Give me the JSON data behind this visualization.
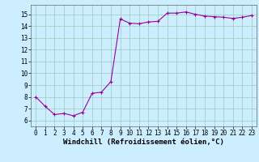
{
  "x": [
    0,
    1,
    2,
    3,
    4,
    5,
    6,
    7,
    8,
    9,
    10,
    11,
    12,
    13,
    14,
    15,
    16,
    17,
    18,
    19,
    20,
    21,
    22,
    23
  ],
  "y": [
    8.0,
    7.2,
    6.5,
    6.6,
    6.4,
    6.7,
    8.3,
    8.4,
    9.3,
    14.6,
    14.25,
    14.2,
    14.35,
    14.4,
    15.1,
    15.1,
    15.2,
    15.0,
    14.85,
    14.8,
    14.75,
    14.65,
    14.75,
    14.9
  ],
  "line_color": "#990099",
  "marker": "+",
  "markersize": 3,
  "linewidth": 0.8,
  "bg_color": "#cceeff",
  "grid_color": "#99ccbb",
  "xlabel": "Windchill (Refroidissement éolien,°C)",
  "xlabel_fontsize": 6.5,
  "tick_fontsize": 5.5,
  "xlim": [
    -0.5,
    23.5
  ],
  "ylim": [
    5.5,
    15.8
  ],
  "yticks": [
    6,
    7,
    8,
    9,
    10,
    11,
    12,
    13,
    14,
    15
  ],
  "xticks": [
    0,
    1,
    2,
    3,
    4,
    5,
    6,
    7,
    8,
    9,
    10,
    11,
    12,
    13,
    14,
    15,
    16,
    17,
    18,
    19,
    20,
    21,
    22,
    23
  ]
}
